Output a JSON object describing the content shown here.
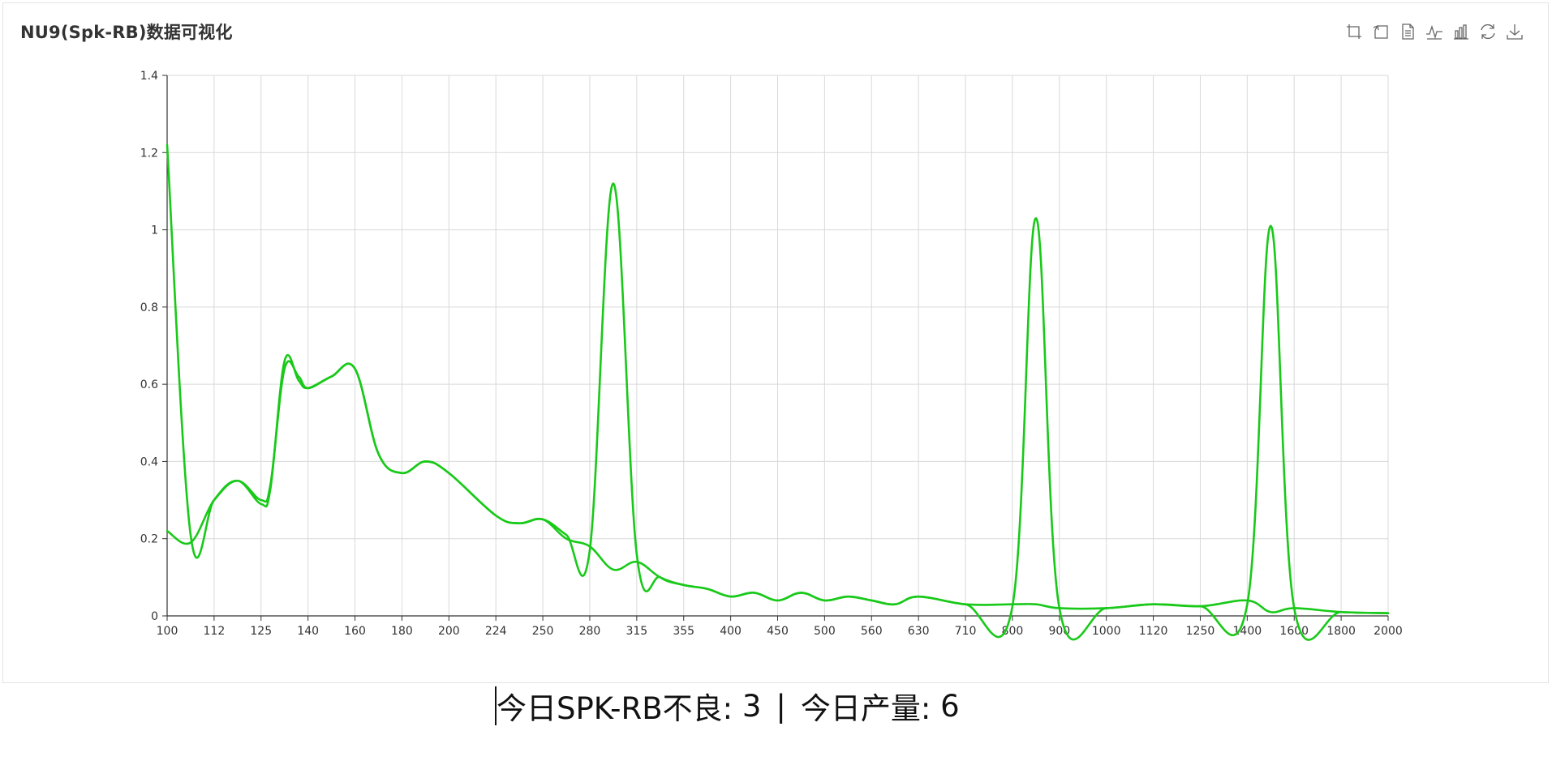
{
  "panel": {
    "title": "NU9(Spk-RB)数据可视化",
    "toolbox": [
      {
        "name": "zoom-icon"
      },
      {
        "name": "zoom-reset-icon"
      },
      {
        "name": "data-view-icon"
      },
      {
        "name": "line-chart-icon"
      },
      {
        "name": "bar-chart-icon"
      },
      {
        "name": "restore-icon"
      },
      {
        "name": "download-icon"
      }
    ]
  },
  "status": {
    "defect_label": "今日SPK-RB不良:",
    "defect_count": "3",
    "separator": "|",
    "output_label": "今日产量:",
    "output_count": "6"
  },
  "chart_data": {
    "type": "line",
    "title": "NU9(Spk-RB)数据可视化",
    "xlabel": "",
    "ylabel": "",
    "ylim": [
      0,
      1.4
    ],
    "yticks": [
      0,
      0.2,
      0.4,
      0.6,
      0.8,
      1,
      1.2,
      1.4
    ],
    "grid": true,
    "line_color": "#19c919",
    "categories": [
      "100",
      "112",
      "125",
      "140",
      "160",
      "180",
      "200",
      "224",
      "250",
      "280",
      "315",
      "355",
      "400",
      "450",
      "500",
      "560",
      "630",
      "710",
      "800",
      "900",
      "1000",
      "1120",
      "1250",
      "1400",
      "1600",
      "1800",
      "2000"
    ],
    "series": [
      {
        "values": [
          [
            0,
            1.22
          ],
          [
            0.5,
            0.21
          ],
          [
            1,
            0.3
          ],
          [
            1.5,
            0.35
          ],
          [
            2,
            0.3
          ],
          [
            2.2,
            0.34
          ],
          [
            2.5,
            0.64
          ],
          [
            2.8,
            0.62
          ],
          [
            3,
            0.59
          ],
          [
            3.5,
            0.62
          ],
          [
            4,
            0.64
          ],
          [
            4.5,
            0.42
          ],
          [
            5,
            0.37
          ],
          [
            5.5,
            0.4
          ],
          [
            6,
            0.37
          ],
          [
            7,
            0.26
          ],
          [
            7.5,
            0.24
          ],
          [
            8,
            0.25
          ],
          [
            8.5,
            0.21
          ],
          [
            9,
            0.17
          ],
          [
            9.5,
            1.12
          ],
          [
            10,
            0.16
          ],
          [
            10.5,
            0.1
          ],
          [
            11,
            0.08
          ],
          [
            11.5,
            0.07
          ],
          [
            12,
            0.05
          ],
          [
            12.5,
            0.06
          ],
          [
            13,
            0.04
          ],
          [
            13.5,
            0.06
          ],
          [
            14,
            0.04
          ],
          [
            14.5,
            0.05
          ],
          [
            15,
            0.04
          ],
          [
            15.5,
            0.03
          ],
          [
            16,
            0.05
          ],
          [
            17,
            0.03
          ],
          [
            18,
            0.025
          ],
          [
            18.5,
            1.03
          ],
          [
            19,
            0.02
          ],
          [
            20,
            0.02
          ],
          [
            21,
            0.03
          ],
          [
            22,
            0.025
          ],
          [
            23,
            0.03
          ],
          [
            23.5,
            1.01
          ],
          [
            24,
            0.02
          ],
          [
            25,
            0.01
          ],
          [
            26,
            0.007
          ]
        ]
      },
      {
        "values": [
          [
            0,
            0.22
          ],
          [
            0.5,
            0.19
          ],
          [
            1,
            0.3
          ],
          [
            1.5,
            0.35
          ],
          [
            2,
            0.29
          ],
          [
            2.2,
            0.33
          ],
          [
            2.5,
            0.66
          ],
          [
            2.8,
            0.61
          ],
          [
            3,
            0.59
          ],
          [
            3.5,
            0.62
          ],
          [
            4,
            0.64
          ],
          [
            4.5,
            0.42
          ],
          [
            5,
            0.37
          ],
          [
            5.5,
            0.4
          ],
          [
            6,
            0.37
          ],
          [
            7,
            0.26
          ],
          [
            7.5,
            0.24
          ],
          [
            8,
            0.25
          ],
          [
            8.5,
            0.2
          ],
          [
            9,
            0.18
          ],
          [
            9.5,
            0.12
          ],
          [
            10,
            0.14
          ],
          [
            10.5,
            0.1
          ],
          [
            11,
            0.08
          ],
          [
            11.5,
            0.07
          ],
          [
            12,
            0.05
          ],
          [
            12.5,
            0.06
          ],
          [
            13,
            0.04
          ],
          [
            13.5,
            0.06
          ],
          [
            14,
            0.04
          ],
          [
            14.5,
            0.05
          ],
          [
            15,
            0.04
          ],
          [
            15.5,
            0.03
          ],
          [
            16,
            0.05
          ],
          [
            17,
            0.03
          ],
          [
            18,
            0.03
          ],
          [
            18.5,
            0.03
          ],
          [
            19,
            0.02
          ],
          [
            20,
            0.02
          ],
          [
            21,
            0.03
          ],
          [
            22,
            0.025
          ],
          [
            23,
            0.04
          ],
          [
            23.5,
            0.01
          ],
          [
            24,
            0.02
          ],
          [
            25,
            0.01
          ],
          [
            26,
            0.007
          ]
        ]
      }
    ]
  }
}
